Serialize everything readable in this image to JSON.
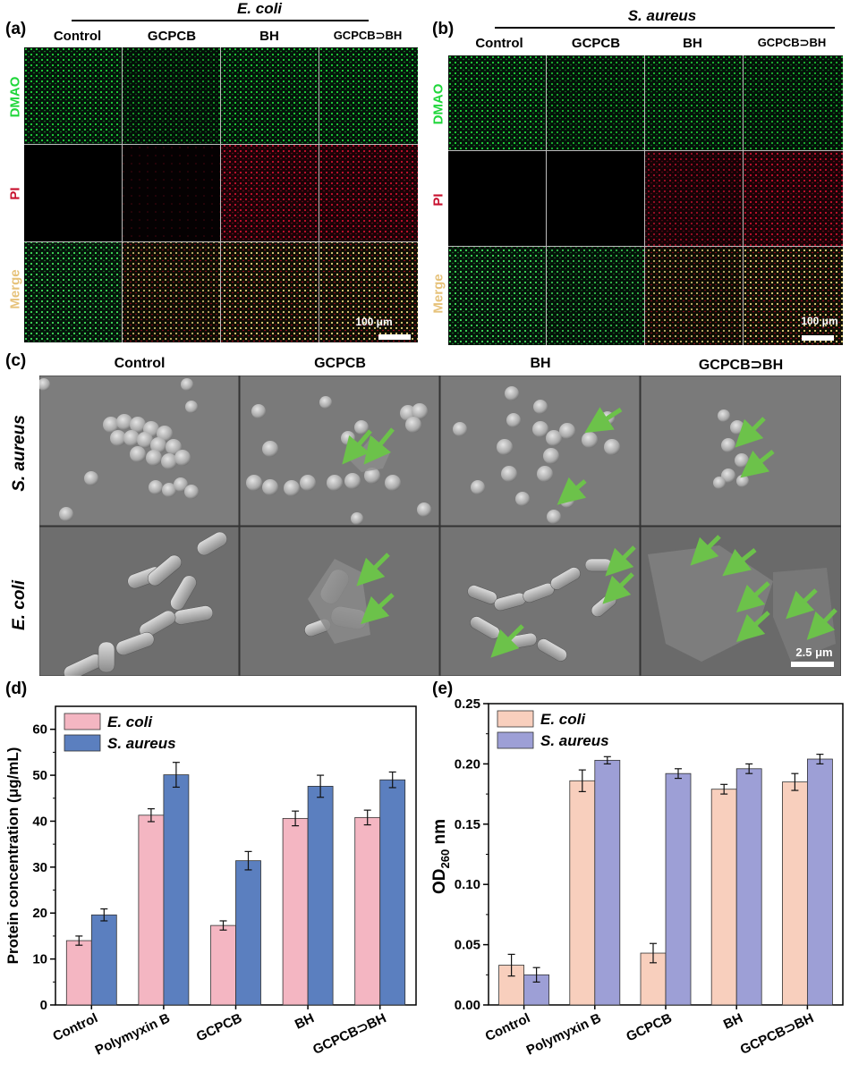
{
  "panels": {
    "a": {
      "label": "(a)",
      "species": "E. coli",
      "columns": [
        "Control",
        "GCPCB",
        "BH",
        "GCPCB⊃BH"
      ],
      "rows": [
        "DMAO",
        "PI",
        "Merge"
      ],
      "scale": "100 μm"
    },
    "b": {
      "label": "(b)",
      "species": "S. aureus",
      "columns": [
        "Control",
        "GCPCB",
        "BH",
        "GCPCB⊃BH"
      ],
      "rows": [
        "DMAO",
        "PI",
        "Merge"
      ],
      "scale": "100 μm"
    },
    "c": {
      "label": "(c)",
      "columns": [
        "Control",
        "GCPCB",
        "BH",
        "GCPCB⊃BH"
      ],
      "rows": [
        "S. aureus",
        "E. coli"
      ],
      "scale": "2.5 μm"
    },
    "d": {
      "label": "(d)"
    },
    "e": {
      "label": "(e)"
    }
  },
  "colors": {
    "dmao": "#1fd63a",
    "pi": "#c8102e",
    "merge": "#e6c27a",
    "ecoli_d": "#f4b6c2",
    "saureus_d": "#5b7fbf",
    "ecoli_e": "#f8cfbd",
    "saureus_e": "#9d9fd6",
    "arrow": "#6cc24a"
  },
  "chart_data": [
    {
      "type": "bar",
      "categories": [
        "Control",
        "Polymyxin B",
        "GCPCB",
        "BH",
        "GCPCB⊃BH"
      ],
      "series": [
        {
          "name": "E. coli",
          "values": [
            14.0,
            41.3,
            17.3,
            40.6,
            40.8
          ],
          "errors": [
            1.0,
            1.4,
            1.0,
            1.6,
            1.6
          ]
        },
        {
          "name": "S. aureus",
          "values": [
            19.6,
            50.1,
            31.4,
            47.6,
            49.0
          ],
          "errors": [
            1.3,
            2.7,
            2.0,
            2.4,
            1.7
          ]
        }
      ],
      "ylabel": "Protein concentration (μg/mL)",
      "ylim": [
        0,
        65
      ],
      "yticks": [
        0,
        10,
        20,
        30,
        40,
        50,
        60
      ],
      "legend": "top-left"
    },
    {
      "type": "bar",
      "categories": [
        "Control",
        "Polymyxin B",
        "GCPCB",
        "BH",
        "GCPCB⊃BH"
      ],
      "series": [
        {
          "name": "E. coli",
          "values": [
            0.033,
            0.186,
            0.043,
            0.179,
            0.185
          ],
          "errors": [
            0.009,
            0.009,
            0.008,
            0.004,
            0.007
          ]
        },
        {
          "name": "S. aureus",
          "values": [
            0.025,
            0.203,
            0.192,
            0.196,
            0.204
          ],
          "errors": [
            0.006,
            0.003,
            0.004,
            0.004,
            0.004
          ]
        }
      ],
      "ylabel": "OD260 nm",
      "ylabel_main": "OD",
      "ylabel_sub": "260",
      "ylabel_rest": " nm",
      "ylim": [
        0,
        0.25
      ],
      "yticks": [
        "0.00",
        "0.05",
        "0.10",
        "0.15",
        "0.20",
        "0.25"
      ],
      "legend": "top-left"
    }
  ]
}
